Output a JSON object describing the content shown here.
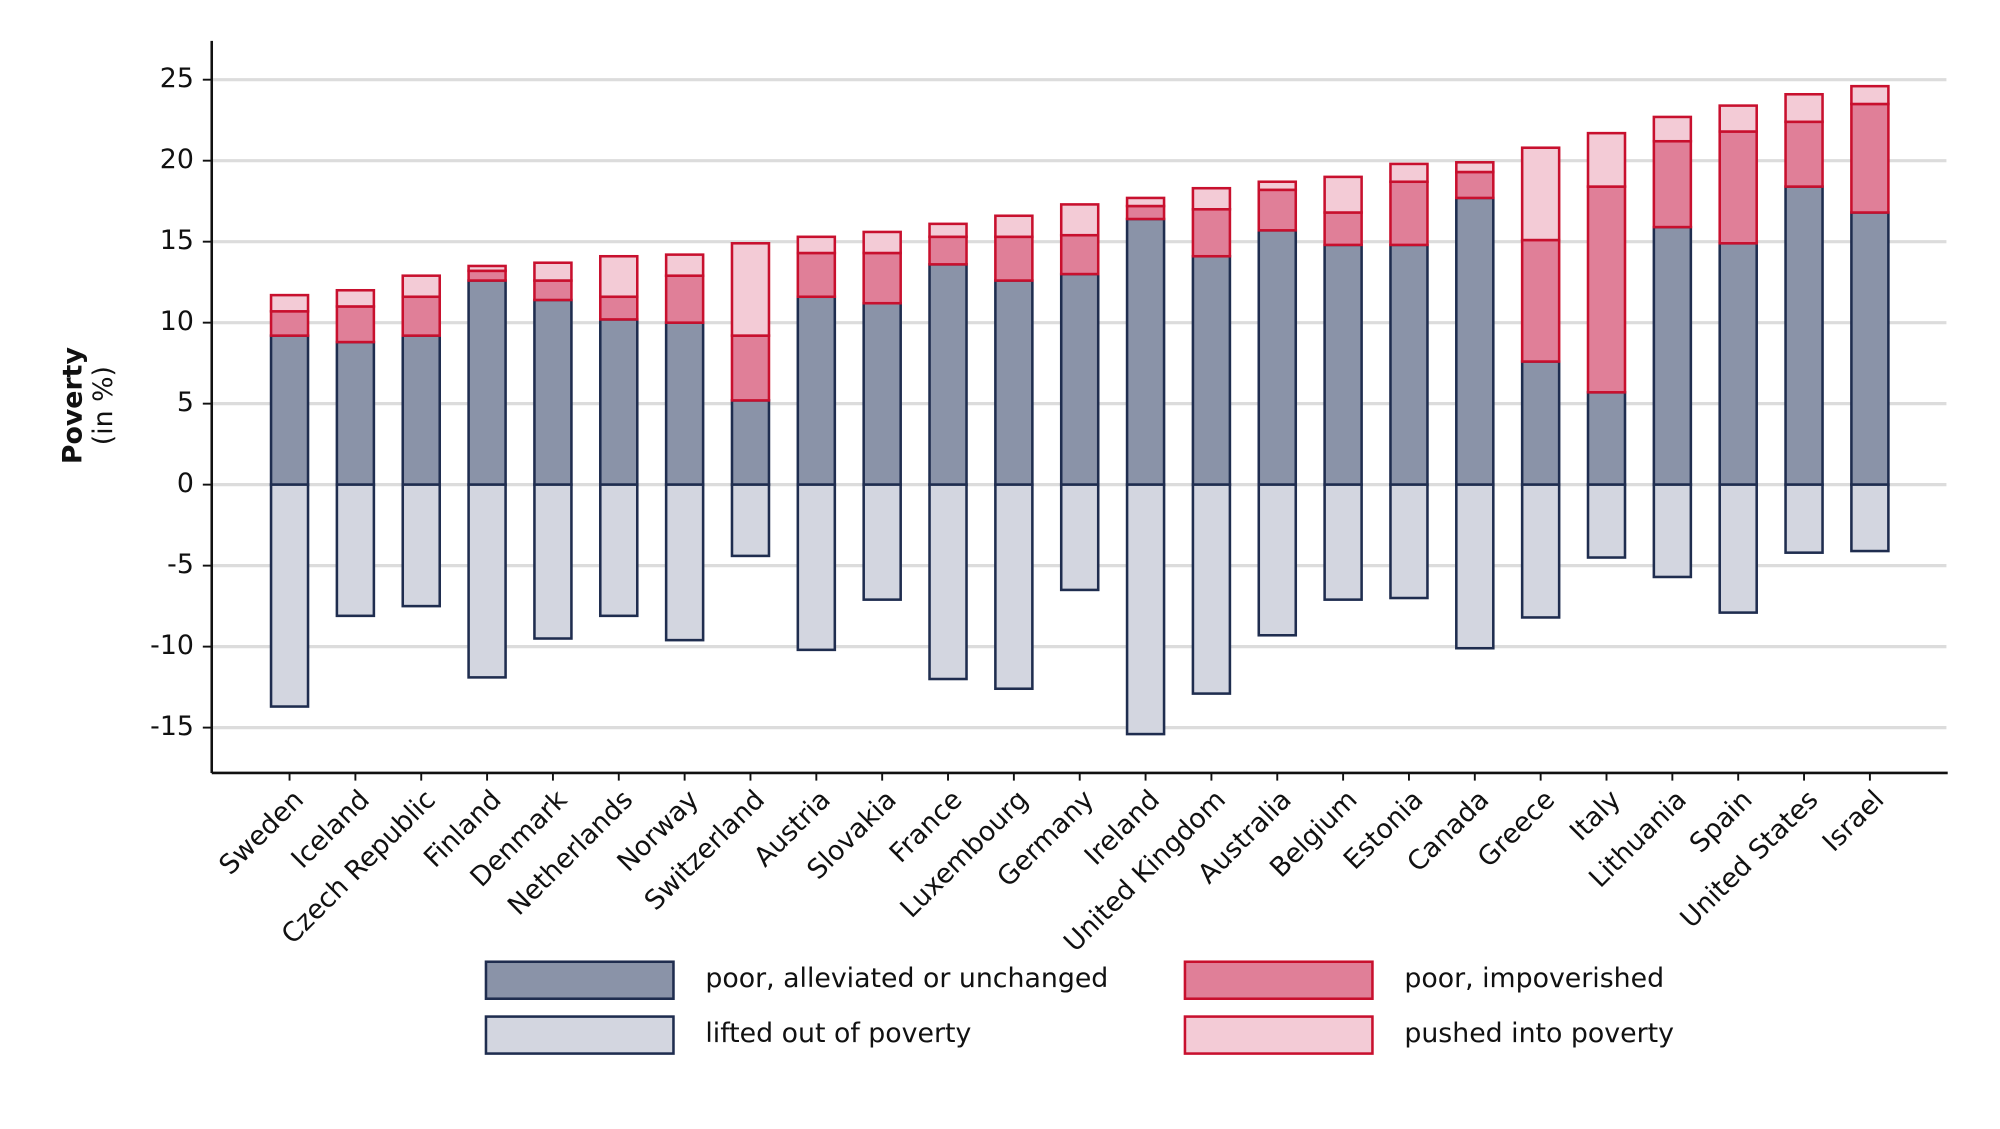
{
  "chart_data": {
    "type": "bar",
    "stacked": true,
    "y_label": "Poverty",
    "y_label_unit": "(in %)",
    "categories": [
      "Sweden",
      "Iceland",
      "Czech Republic",
      "Finland",
      "Denmark",
      "Netherlands",
      "Norway",
      "Switzerland",
      "Austria",
      "Slovakia",
      "France",
      "Luxembourg",
      "Germany",
      "Ireland",
      "United Kingdom",
      "Australia",
      "Belgium",
      "Estonia",
      "Canada",
      "Greece",
      "Italy",
      "Lithuania",
      "Spain",
      "United States",
      "Israel"
    ],
    "series": [
      {
        "name": "poor, alleviated or unchanged",
        "color": "#8a93a8",
        "edgecolor": "#1f2d4f",
        "values": [
          9.2,
          8.8,
          9.2,
          12.6,
          11.4,
          10.2,
          10.0,
          5.2,
          11.6,
          11.2,
          13.6,
          12.6,
          13.0,
          16.4,
          14.1,
          15.7,
          14.8,
          14.8,
          17.7,
          7.6,
          5.7,
          15.9,
          14.9,
          18.4,
          16.8
        ]
      },
      {
        "name": "lifted out of poverty",
        "color": "#d3d6e0",
        "edgecolor": "#1f2d4f",
        "values": [
          -13.7,
          -8.1,
          -7.5,
          -11.9,
          -9.5,
          -8.1,
          -9.6,
          -4.4,
          -10.2,
          -7.1,
          -12.0,
          -12.6,
          -6.5,
          -15.4,
          -12.9,
          -9.3,
          -7.1,
          -7.0,
          -10.1,
          -8.2,
          -4.5,
          -5.7,
          -7.9,
          -4.2,
          -4.1
        ]
      },
      {
        "name": "poor, impoverished",
        "color": "#e07f98",
        "edgecolor": "#c8102e",
        "values": [
          1.5,
          2.2,
          2.4,
          0.6,
          1.2,
          1.4,
          2.9,
          4.0,
          2.7,
          3.1,
          1.7,
          2.7,
          2.4,
          0.8,
          2.9,
          2.5,
          2.0,
          3.9,
          1.6,
          7.5,
          12.7,
          5.3,
          6.9,
          4.0,
          6.7
        ]
      },
      {
        "name": "pushed into poverty",
        "color": "#f3cbd6",
        "edgecolor": "#c8102e",
        "values": [
          1.0,
          1.0,
          1.3,
          0.3,
          1.1,
          2.5,
          1.3,
          5.7,
          1.0,
          1.3,
          0.8,
          1.3,
          1.9,
          0.5,
          1.3,
          0.5,
          2.2,
          1.1,
          0.6,
          5.7,
          3.3,
          1.5,
          1.6,
          1.7,
          1.1
        ]
      }
    ],
    "ylim": [
      -17.8,
      27.4
    ],
    "yticks": [
      -15,
      -10,
      -5,
      0,
      5,
      10,
      15,
      20,
      25
    ],
    "grid": true
  }
}
